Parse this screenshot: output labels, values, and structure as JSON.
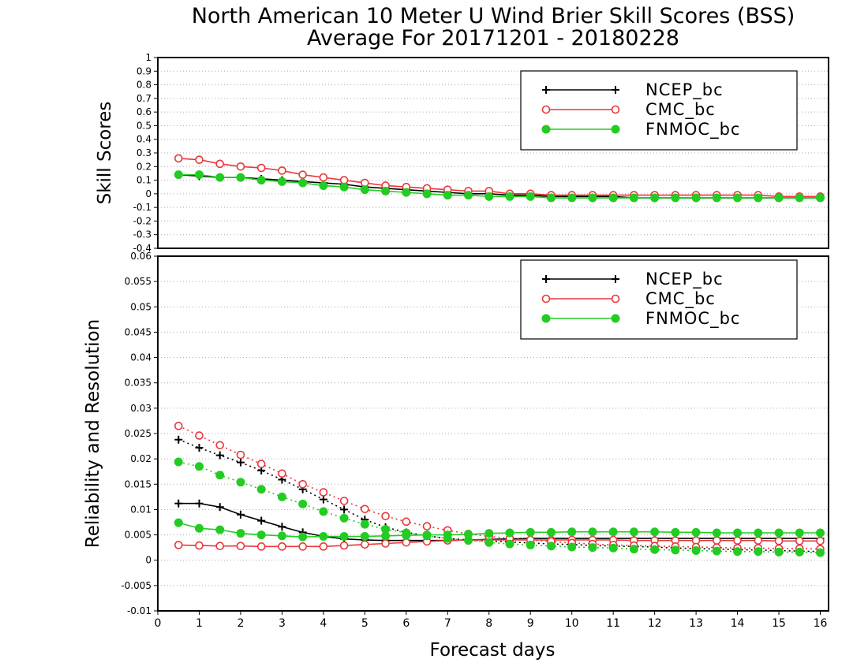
{
  "title_line1": "North American 10 Meter U Wind Brier Skill Scores (BSS)",
  "title_line2": "Average For 20171201 - 20180228",
  "xlabel": "Forecast days",
  "colors": {
    "NCEP_bc": "#000000",
    "CMC_bc": "#e8373b",
    "FNMOC_bc": "#22cc22",
    "grid": "#aaaaaa"
  },
  "chart_data": [
    {
      "type": "line",
      "title": "North American 10 Meter U Wind Brier Skill Scores (BSS)",
      "ylabel": "Skill Scores",
      "xlabel": "",
      "xlim": [
        0,
        16.2
      ],
      "ylim": [
        -0.4,
        1
      ],
      "yticks": [
        "-0.4",
        "-0.3",
        "-0.2",
        "-0.1",
        "0",
        "0.1",
        "0.2",
        "0.3",
        "0.4",
        "0.5",
        "0.6",
        "0.7",
        "0.8",
        "0.9",
        "1"
      ],
      "yticks_values": [
        -0.4,
        -0.3,
        -0.2,
        -0.1,
        0,
        0.1,
        0.2,
        0.3,
        0.4,
        0.5,
        0.6,
        0.7,
        0.8,
        0.9,
        1
      ],
      "grid": true,
      "legend_position": "top-right",
      "x": [
        0.5,
        1,
        1.5,
        2,
        2.5,
        3,
        3.5,
        4,
        4.5,
        5,
        5.5,
        6,
        6.5,
        7,
        7.5,
        8,
        8.5,
        9,
        9.5,
        10,
        10.5,
        11,
        11.5,
        12,
        12.5,
        13,
        13.5,
        14,
        14.5,
        15,
        15.5,
        16
      ],
      "series": [
        {
          "name": "NCEP_bc",
          "marker": "plus",
          "style": "solid",
          "values": [
            0.14,
            0.13,
            0.12,
            0.12,
            0.11,
            0.1,
            0.09,
            0.08,
            0.07,
            0.05,
            0.04,
            0.03,
            0.02,
            0.01,
            0.0,
            0.0,
            -0.01,
            -0.01,
            -0.02,
            -0.02,
            -0.02,
            -0.02,
            -0.03,
            -0.03,
            -0.03,
            -0.03,
            -0.03,
            -0.03,
            -0.03,
            -0.03,
            -0.03,
            -0.03
          ]
        },
        {
          "name": "CMC_bc",
          "marker": "circle-open",
          "style": "solid",
          "values": [
            0.26,
            0.25,
            0.22,
            0.2,
            0.19,
            0.17,
            0.14,
            0.12,
            0.1,
            0.08,
            0.06,
            0.05,
            0.04,
            0.03,
            0.02,
            0.02,
            0.0,
            0.0,
            -0.01,
            -0.01,
            -0.01,
            -0.01,
            -0.01,
            -0.01,
            -0.01,
            -0.01,
            -0.01,
            -0.01,
            -0.01,
            -0.02,
            -0.02,
            -0.02
          ]
        },
        {
          "name": "FNMOC_bc",
          "marker": "circle-filled",
          "style": "solid",
          "values": [
            0.14,
            0.14,
            0.12,
            0.12,
            0.1,
            0.09,
            0.08,
            0.06,
            0.05,
            0.03,
            0.02,
            0.01,
            0.0,
            -0.01,
            -0.01,
            -0.02,
            -0.02,
            -0.02,
            -0.03,
            -0.03,
            -0.03,
            -0.03,
            -0.03,
            -0.03,
            -0.03,
            -0.03,
            -0.03,
            -0.03,
            -0.03,
            -0.03,
            -0.03,
            -0.03
          ]
        }
      ]
    },
    {
      "type": "line",
      "title": "",
      "ylabel": "Reliability and Resolution",
      "xlabel": "Forecast days",
      "xlim": [
        0,
        16.2
      ],
      "xticks": [
        "0",
        "1",
        "2",
        "3",
        "4",
        "5",
        "6",
        "7",
        "8",
        "9",
        "10",
        "11",
        "12",
        "13",
        "14",
        "15",
        "16"
      ],
      "xticks_values": [
        0,
        1,
        2,
        3,
        4,
        5,
        6,
        7,
        8,
        9,
        10,
        11,
        12,
        13,
        14,
        15,
        16
      ],
      "ylim": [
        -0.01,
        0.06
      ],
      "yticks": [
        "-0.01",
        "-0.005",
        "0",
        "0.005",
        "0.01",
        "0.015",
        "0.02",
        "0.025",
        "0.03",
        "0.035",
        "0.04",
        "0.045",
        "0.05",
        "0.055",
        "0.06"
      ],
      "yticks_values": [
        -0.01,
        -0.005,
        0,
        0.005,
        0.01,
        0.015,
        0.02,
        0.025,
        0.03,
        0.035,
        0.04,
        0.045,
        0.05,
        0.055,
        0.06
      ],
      "grid": true,
      "legend_position": "top-right",
      "x": [
        0.5,
        1,
        1.5,
        2,
        2.5,
        3,
        3.5,
        4,
        4.5,
        5,
        5.5,
        6,
        6.5,
        7,
        7.5,
        8,
        8.5,
        9,
        9.5,
        10,
        10.5,
        11,
        11.5,
        12,
        12.5,
        13,
        13.5,
        14,
        14.5,
        15,
        15.5,
        16
      ],
      "series": [
        {
          "name": "NCEP_bc",
          "marker": "plus",
          "style": "solid",
          "values": [
            0.0112,
            0.0112,
            0.0105,
            0.009,
            0.0078,
            0.0066,
            0.0055,
            0.0047,
            0.0042,
            0.004,
            0.0039,
            0.0039,
            0.0039,
            0.0039,
            0.004,
            0.0041,
            0.0042,
            0.0043,
            0.0043,
            0.0043,
            0.0043,
            0.0043,
            0.0043,
            0.0043,
            0.0043,
            0.0043,
            0.0043,
            0.0043,
            0.0043,
            0.0043,
            0.0043,
            0.0043
          ]
        },
        {
          "name": "NCEP_bc",
          "marker": "plus",
          "style": "dotted",
          "values": [
            0.0238,
            0.0222,
            0.0207,
            0.0193,
            0.0177,
            0.0159,
            0.014,
            0.012,
            0.01,
            0.008,
            0.0065,
            0.0055,
            0.0048,
            0.0043,
            0.004,
            0.0038,
            0.0036,
            0.0034,
            0.0032,
            0.0031,
            0.0029,
            0.0028,
            0.0027,
            0.0026,
            0.0024,
            0.0023,
            0.0022,
            0.0021,
            0.002,
            0.0019,
            0.0018,
            0.0017
          ]
        },
        {
          "name": "CMC_bc",
          "marker": "circle-open",
          "style": "solid",
          "values": [
            0.003,
            0.0029,
            0.0028,
            0.0028,
            0.0027,
            0.0027,
            0.0027,
            0.0027,
            0.0029,
            0.0031,
            0.0033,
            0.0035,
            0.0037,
            0.0039,
            0.004,
            0.004,
            0.004,
            0.004,
            0.004,
            0.004,
            0.004,
            0.004,
            0.0039,
            0.0039,
            0.0039,
            0.0039,
            0.0039,
            0.0039,
            0.0039,
            0.0038,
            0.0038,
            0.0038
          ]
        },
        {
          "name": "CMC_bc",
          "marker": "circle-open",
          "style": "dotted",
          "values": [
            0.0265,
            0.0246,
            0.0227,
            0.0208,
            0.019,
            0.0171,
            0.015,
            0.0134,
            0.0117,
            0.0101,
            0.0087,
            0.0076,
            0.0067,
            0.0059,
            0.0052,
            0.0047,
            0.0043,
            0.004,
            0.0037,
            0.0034,
            0.0032,
            0.003,
            0.0029,
            0.0028,
            0.0027,
            0.0026,
            0.0025,
            0.0024,
            0.0024,
            0.0023,
            0.0023,
            0.0022
          ]
        },
        {
          "name": "FNMOC_bc",
          "marker": "circle-filled",
          "style": "solid",
          "values": [
            0.0074,
            0.0063,
            0.006,
            0.0053,
            0.005,
            0.0048,
            0.0046,
            0.0047,
            0.0047,
            0.0047,
            0.0048,
            0.0049,
            0.005,
            0.005,
            0.0051,
            0.0053,
            0.0054,
            0.0055,
            0.0055,
            0.0056,
            0.0056,
            0.0056,
            0.0056,
            0.0056,
            0.0055,
            0.0055,
            0.0054,
            0.0054,
            0.0054,
            0.0054,
            0.0054,
            0.0054
          ]
        },
        {
          "name": "FNMOC_bc",
          "marker": "circle-filled",
          "style": "dotted",
          "values": [
            0.0194,
            0.0185,
            0.0168,
            0.0154,
            0.014,
            0.0125,
            0.0111,
            0.0096,
            0.0083,
            0.0071,
            0.0061,
            0.0054,
            0.0048,
            0.0043,
            0.0039,
            0.0035,
            0.0032,
            0.003,
            0.0028,
            0.0026,
            0.0025,
            0.0024,
            0.0022,
            0.0021,
            0.002,
            0.0019,
            0.0018,
            0.0017,
            0.0017,
            0.0016,
            0.0016,
            0.0015
          ]
        }
      ]
    }
  ]
}
